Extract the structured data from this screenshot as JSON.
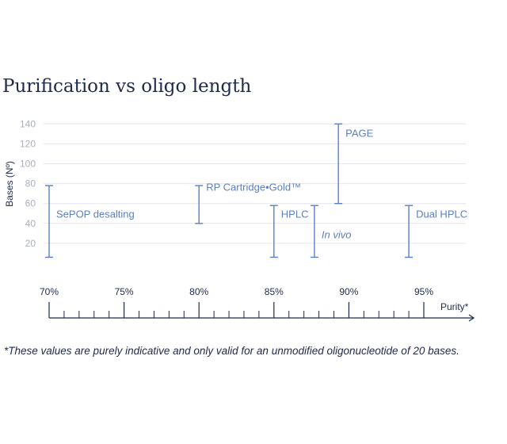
{
  "title": "Purification vs oligo length",
  "footnote": "*These values are purely indicative and only valid for an unmodified oligonucleotide of 20 bases.",
  "chart_data": {
    "type": "range",
    "ylabel": "Bases (Nº)",
    "xlabel": "Purity*",
    "ylim": [
      0,
      140
    ],
    "y_ticks": [
      "20",
      "40",
      "60",
      "80",
      "100",
      "120",
      "140"
    ],
    "xlim": [
      70,
      95
    ],
    "x_ticks": [
      "70%",
      "75%",
      "80%",
      "85%",
      "90%",
      "95%"
    ],
    "grid": true,
    "series": [
      {
        "label": "SePOP desalting",
        "purity": 70,
        "min": 6,
        "max": 78,
        "italic": false
      },
      {
        "label": "RP Cartridge•Gold™",
        "purity": 80,
        "min": 40,
        "max": 78,
        "italic": false
      },
      {
        "label": "HPLC",
        "purity": 85,
        "min": 6,
        "max": 58,
        "italic": false
      },
      {
        "label": "In vivo",
        "purity": 87.7,
        "min": 6,
        "max": 58,
        "italic": true
      },
      {
        "label": "PAGE",
        "purity": 89.3,
        "min": 60,
        "max": 140,
        "italic": false
      },
      {
        "label": "Dual HPLC",
        "purity": 94,
        "min": 6,
        "max": 58,
        "italic": false
      }
    ]
  },
  "colors": {
    "range": "#5b7fc4",
    "grid": "#e3e6ec",
    "axis": "#1f2a4a",
    "muted": "#a9b0bd"
  }
}
